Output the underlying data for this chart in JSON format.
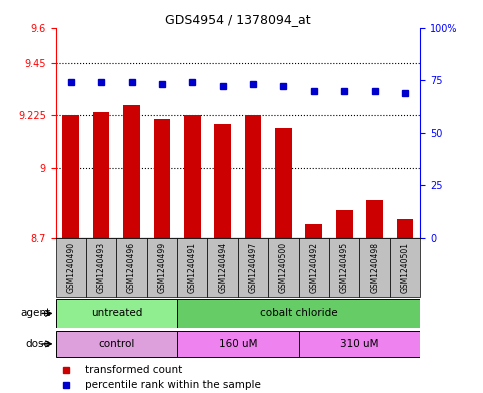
{
  "title": "GDS4954 / 1378094_at",
  "samples": [
    "GSM1240490",
    "GSM1240493",
    "GSM1240496",
    "GSM1240499",
    "GSM1240491",
    "GSM1240494",
    "GSM1240497",
    "GSM1240500",
    "GSM1240492",
    "GSM1240495",
    "GSM1240498",
    "GSM1240501"
  ],
  "red_values": [
    9.225,
    9.24,
    9.27,
    9.21,
    9.225,
    9.185,
    9.225,
    9.17,
    8.76,
    8.82,
    8.86,
    8.78
  ],
  "blue_values": [
    74,
    74,
    74,
    73,
    74,
    72,
    73,
    72,
    70,
    70,
    70,
    69
  ],
  "ylim_left": [
    8.7,
    9.6
  ],
  "ylim_right": [
    0,
    100
  ],
  "yticks_left": [
    8.7,
    9.0,
    9.225,
    9.45,
    9.6
  ],
  "yticks_right": [
    0,
    25,
    50,
    75,
    100
  ],
  "ytick_labels_left": [
    "8.7",
    "9",
    "9.225",
    "9.45",
    "9.6"
  ],
  "ytick_labels_right": [
    "0",
    "25",
    "50",
    "75",
    "100%"
  ],
  "hlines": [
    9.0,
    9.225,
    9.45
  ],
  "agent_groups": [
    {
      "label": "untreated",
      "start": 0,
      "end": 4,
      "color": "#90EE90"
    },
    {
      "label": "cobalt chloride",
      "start": 4,
      "end": 12,
      "color": "#66CC66"
    }
  ],
  "dose_groups": [
    {
      "label": "control",
      "start": 0,
      "end": 4,
      "color": "#DDA0DD"
    },
    {
      "label": "160 uM",
      "start": 4,
      "end": 8,
      "color": "#EE82EE"
    },
    {
      "label": "310 uM",
      "start": 8,
      "end": 12,
      "color": "#EE82EE"
    }
  ],
  "bar_color": "#CC0000",
  "dot_color": "#0000CC",
  "label_box_color": "#C0C0C0",
  "legend_red_label": "transformed count",
  "legend_blue_label": "percentile rank within the sample",
  "base_value": 8.7
}
